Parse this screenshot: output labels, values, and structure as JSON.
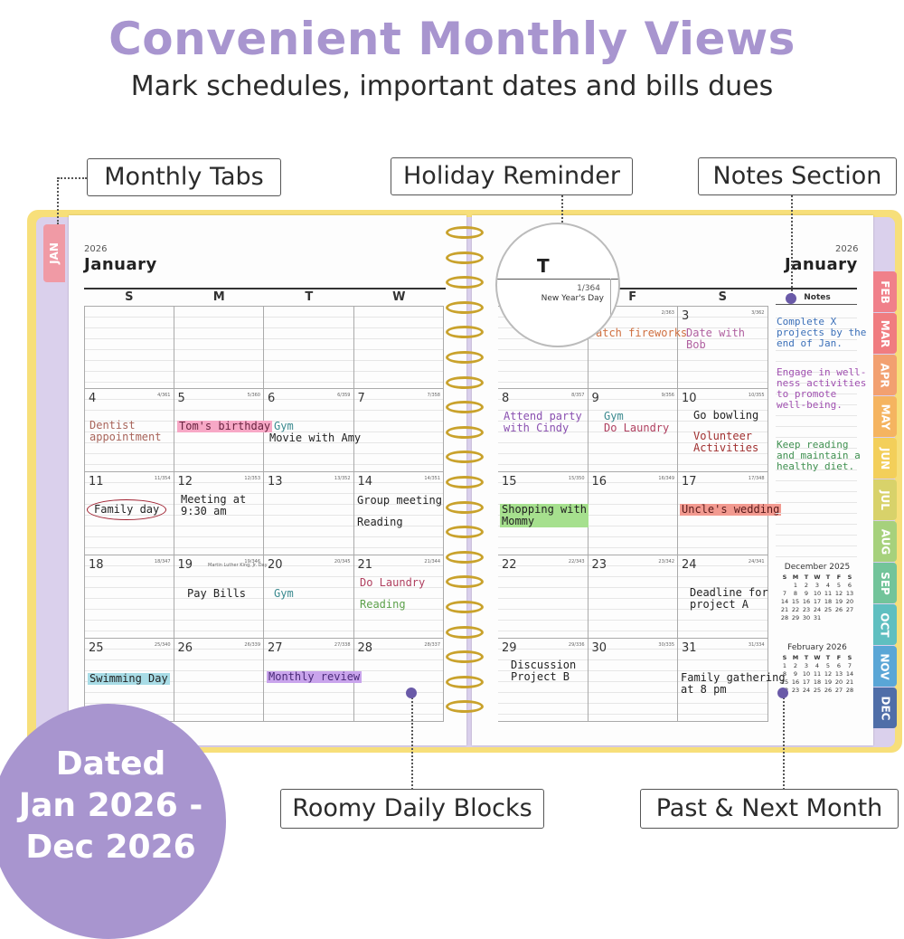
{
  "headline": "Convenient Monthly Views",
  "subheadline": "Mark schedules, important dates and bills dues",
  "callouts": {
    "monthly_tabs": "Monthly Tabs",
    "holiday_reminder": "Holiday Reminder",
    "notes_section": "Notes Section",
    "roomy_blocks": "Roomy Daily Blocks",
    "past_next": "Past & Next Month"
  },
  "badge": {
    "line1": "Dated",
    "line2": "Jan 2026 -",
    "line3": "Dec 2026"
  },
  "planner": {
    "year": "2026",
    "month": "January",
    "left_days": [
      "S",
      "M",
      "T",
      "W"
    ],
    "right_days": [
      "T",
      "F",
      "S"
    ],
    "notes_label": "Notes",
    "zoom": {
      "day": "T",
      "count": "1/364",
      "holiday": "New Year's Day"
    },
    "left_cells": [
      {
        "d": "",
        "s": ""
      },
      {
        "d": "",
        "s": ""
      },
      {
        "d": "",
        "s": ""
      },
      {
        "d": "",
        "s": ""
      },
      {
        "d": "4",
        "s": "4/361"
      },
      {
        "d": "5",
        "s": "5/360"
      },
      {
        "d": "6",
        "s": "6/359"
      },
      {
        "d": "7",
        "s": "7/358"
      },
      {
        "d": "11",
        "s": "11/354"
      },
      {
        "d": "12",
        "s": "12/353"
      },
      {
        "d": "13",
        "s": "13/352"
      },
      {
        "d": "14",
        "s": "14/351"
      },
      {
        "d": "18",
        "s": "18/347"
      },
      {
        "d": "19",
        "s": "19/346"
      },
      {
        "d": "20",
        "s": "20/345"
      },
      {
        "d": "21",
        "s": "21/344"
      },
      {
        "d": "25",
        "s": "25/340"
      },
      {
        "d": "26",
        "s": "26/339"
      },
      {
        "d": "27",
        "s": "27/338"
      },
      {
        "d": "28",
        "s": "28/337"
      }
    ],
    "right_cells": [
      {
        "d": "",
        "s": ""
      },
      {
        "d": "",
        "s": "2/363"
      },
      {
        "d": "3",
        "s": "3/362"
      },
      {
        "d": "8",
        "s": "8/357"
      },
      {
        "d": "9",
        "s": "9/356"
      },
      {
        "d": "10",
        "s": "10/355"
      },
      {
        "d": "15",
        "s": "15/350"
      },
      {
        "d": "16",
        "s": "16/349"
      },
      {
        "d": "17",
        "s": "17/348"
      },
      {
        "d": "22",
        "s": "22/343"
      },
      {
        "d": "23",
        "s": "23/342"
      },
      {
        "d": "24",
        "s": "24/341"
      },
      {
        "d": "29",
        "s": "29/336"
      },
      {
        "d": "30",
        "s": "30/335"
      },
      {
        "d": "31",
        "s": "31/334"
      }
    ],
    "mlk_label": "Martin Luther King, Jr. Day",
    "entries": {
      "dentist": "Dentist\nappointment",
      "toms_birthday": "Tom's birthday",
      "gym6": "Gym",
      "movie": "Movie with Amy",
      "family_day": "Family day",
      "meeting": "Meeting at\n9:30 am",
      "group_meeting": "Group meeting",
      "reading14": "Reading",
      "pay_bills": "Pay Bills",
      "gym20": "Gym",
      "laundry21": "Do Laundry",
      "reading21": "Reading",
      "swimming": "Swimming Day",
      "monthly_review": "Monthly review",
      "fireworks": "atch fireworks",
      "date_bob": "Date with\nBob",
      "attend_party": "Attend party\nwith Cindy",
      "gym9": "Gym",
      "laundry9": "Do Laundry",
      "bowling": "Go bowling",
      "volunteer": "Volunteer\nActivities",
      "shopping": "Shopping with\nMommy",
      "uncle_wedding": "Uncle's wedding",
      "deadline": "Deadline for\nproject A",
      "discussion": "Discussion\nProject B",
      "family_gathering": "Family gathering\nat 8 pm"
    },
    "notes": {
      "n1": "Complete X\nprojects by the\nend of Jan.",
      "n2": "Engage in well-\nness activities\nto promote\nwell-being.",
      "n3": "Keep reading\nand maintain a\nhealthy diet."
    },
    "mini_prev": {
      "title": "December 2025",
      "head": [
        "S",
        "M",
        "T",
        "W",
        "T",
        "F",
        "S"
      ],
      "cells": [
        "",
        "1",
        "2",
        "3",
        "4",
        "5",
        "6",
        "7",
        "8",
        "9",
        "10",
        "11",
        "12",
        "13",
        "14",
        "15",
        "16",
        "17",
        "18",
        "19",
        "20",
        "21",
        "22",
        "23",
        "24",
        "25",
        "26",
        "27",
        "28",
        "29",
        "30",
        "31",
        "",
        "",
        ""
      ]
    },
    "mini_next": {
      "title": "February 2026",
      "head": [
        "S",
        "M",
        "T",
        "W",
        "T",
        "F",
        "S"
      ],
      "cells": [
        "1",
        "2",
        "3",
        "4",
        "5",
        "6",
        "7",
        "8",
        "9",
        "10",
        "11",
        "12",
        "13",
        "14",
        "15",
        "16",
        "17",
        "18",
        "19",
        "20",
        "21",
        "22",
        "23",
        "24",
        "25",
        "26",
        "27",
        "28"
      ]
    },
    "jan_tab": "JAN",
    "tabs": [
      {
        "label": "FEB",
        "color": "#f0808a"
      },
      {
        "label": "MAR",
        "color": "#f07c80"
      },
      {
        "label": "APR",
        "color": "#f2a070"
      },
      {
        "label": "MAY",
        "color": "#f5b460"
      },
      {
        "label": "JUN",
        "color": "#f3cf5a"
      },
      {
        "label": "JUL",
        "color": "#d8d26a"
      },
      {
        "label": "AUG",
        "color": "#a6d17c"
      },
      {
        "label": "SEP",
        "color": "#72c49a"
      },
      {
        "label": "OCT",
        "color": "#5fbfc0"
      },
      {
        "label": "NOV",
        "color": "#5aa6d6"
      },
      {
        "label": "DEC",
        "color": "#4f6ea8"
      }
    ]
  }
}
